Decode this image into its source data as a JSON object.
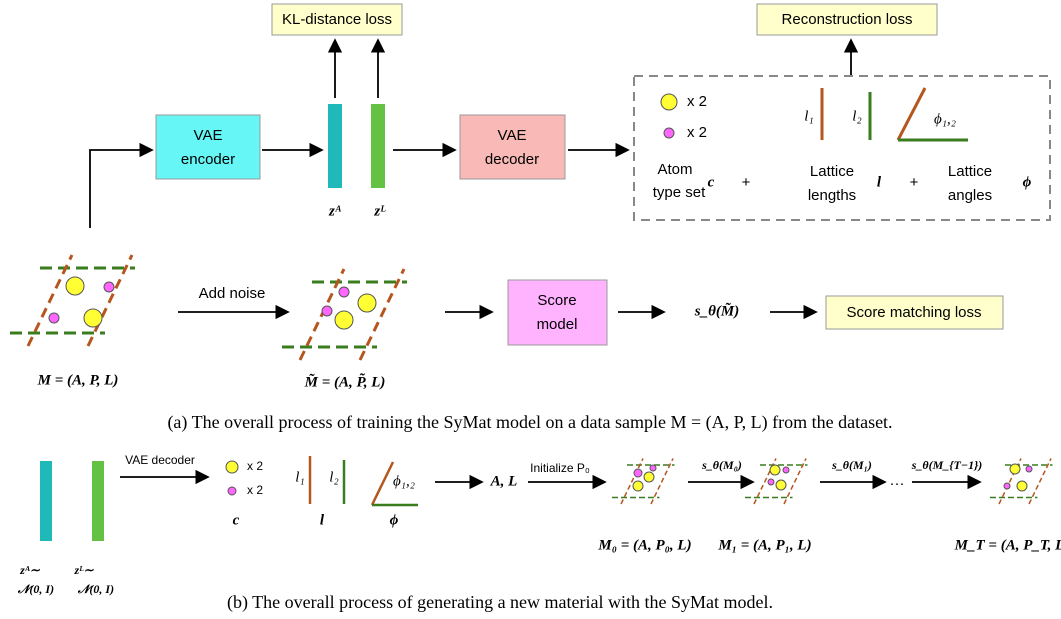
{
  "training": {
    "kl_loss": "KL-distance loss",
    "reconstruction_loss": "Reconstruction loss",
    "encoder": [
      "VAE",
      "encoder"
    ],
    "decoder": [
      "VAE",
      "decoder"
    ],
    "z_a": "zᴬ",
    "z_l": "zᴸ",
    "atom_count_1": "x 2",
    "atom_count_2": "x 2",
    "atom_type_label": [
      "Atom",
      "type set"
    ],
    "atom_symbol": "c",
    "plus_1": "+",
    "l1": "l₁",
    "l2": "l₂",
    "lengths_label": [
      "Lattice",
      "lengths"
    ],
    "lengths_symbol": "l",
    "plus_2": "+",
    "phi12": "ϕ₁,₂",
    "angles_label": [
      "Lattice",
      "angles"
    ],
    "angles_symbol": "ϕ",
    "add_noise": "Add noise",
    "score_model": [
      "Score",
      "model"
    ],
    "score_output": "s_θ(M̃)",
    "score_loss": "Score matching loss",
    "m_label": "M = (A, P, L)",
    "m_tilde_label": "M̃ = (A, P̃, L)",
    "caption": "(a)  The overall process of training the SyMat model on a data sample M = (A, P, L) from the dataset."
  },
  "generation": {
    "z_a": [
      "zᴬ∼",
      "𝒩(0, I)"
    ],
    "z_l": [
      "zᴸ∼",
      "𝒩(0, I)"
    ],
    "decoder": "VAE decoder",
    "atom_count_1": "x 2",
    "atom_count_2": "x 2",
    "atom_symbol": "c",
    "l1": "l₁",
    "l2": "l₂",
    "lengths_symbol": "l",
    "phi12": "ϕ₁,₂",
    "angles_symbol": "ϕ",
    "a_l": "A, L",
    "initialize": "Initialize P₀",
    "step_0": "s_θ(M₀)",
    "step_1": "s_θ(M₁)",
    "ellipsis": "···",
    "step_t": "s_θ(M_{T−1})",
    "m0_label": "M₀ = (A, P₀, L)",
    "m1_label": "M₁ = (A, P₁, L)",
    "mt_label": "M_T = (A, P_T, L)",
    "caption": "(b)  The overall process of generating a new material with the SyMat model."
  }
}
